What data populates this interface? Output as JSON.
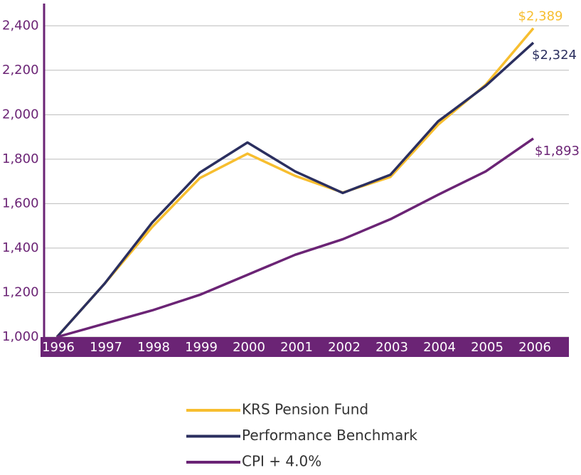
{
  "chart_data": {
    "type": "line",
    "categories": [
      "1996",
      "1997",
      "1998",
      "1999",
      "2000",
      "2001",
      "2002",
      "2003",
      "2004",
      "2005",
      "2006"
    ],
    "series": [
      {
        "name": "KRS Pension Fund",
        "color": "#f7be2f",
        "values": [
          1000,
          1240,
          1495,
          1715,
          1825,
          1725,
          1650,
          1720,
          1955,
          2135,
          2389
        ],
        "value_labels": [
          null,
          null,
          null,
          null,
          null,
          null,
          null,
          null,
          null,
          null,
          "$2,389"
        ]
      },
      {
        "name": "Performance Benchmark",
        "color": "#2b2f5f",
        "values": [
          1000,
          1240,
          1515,
          1740,
          1875,
          1745,
          1648,
          1730,
          1970,
          2130,
          2324
        ],
        "value_labels": [
          null,
          null,
          null,
          null,
          null,
          null,
          null,
          null,
          null,
          null,
          "$2,324"
        ]
      },
      {
        "name": "CPI + 4.0%",
        "color": "#6b2475",
        "values": [
          1000,
          1060,
          1120,
          1190,
          1280,
          1370,
          1440,
          1530,
          1640,
          1745,
          1893
        ],
        "value_labels": [
          null,
          null,
          null,
          null,
          null,
          null,
          null,
          null,
          null,
          null,
          "$1,893"
        ]
      }
    ],
    "ylim": [
      1000,
      2500
    ],
    "yticks": [
      {
        "value": 1000,
        "label": "1,000"
      },
      {
        "value": 1200,
        "label": "1,200"
      },
      {
        "value": 1400,
        "label": "1,400"
      },
      {
        "value": 1600,
        "label": "1,600"
      },
      {
        "value": 1800,
        "label": "1,800"
      },
      {
        "value": 2000,
        "label": "2,000"
      },
      {
        "value": 2200,
        "label": "2,200"
      },
      {
        "value": 2400,
        "label": "2,400"
      }
    ],
    "grid": true
  }
}
